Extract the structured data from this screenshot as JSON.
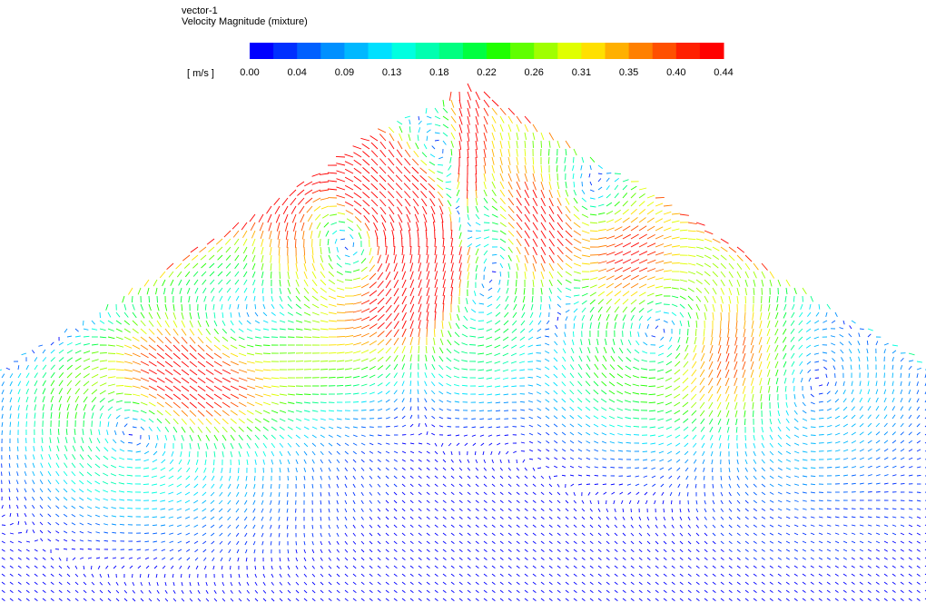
{
  "header": {
    "title": "vector-1",
    "subtitle": "Velocity Magnitude (mixture)"
  },
  "legend": {
    "unit": "[ m/s ]",
    "labels": [
      "0.00",
      "0.04",
      "0.09",
      "0.13",
      "0.18",
      "0.22",
      "0.26",
      "0.31",
      "0.35",
      "0.40",
      "0.44"
    ],
    "colors": [
      "#0000ff",
      "#0030ff",
      "#0060ff",
      "#0090ff",
      "#00b8ff",
      "#00e0ff",
      "#00ffe0",
      "#00ffb0",
      "#00ff80",
      "#00ff40",
      "#20ff00",
      "#60ff00",
      "#a0ff00",
      "#e0ff00",
      "#ffe000",
      "#ffb000",
      "#ff8000",
      "#ff5000",
      "#ff2000",
      "#ff0000"
    ]
  }
}
